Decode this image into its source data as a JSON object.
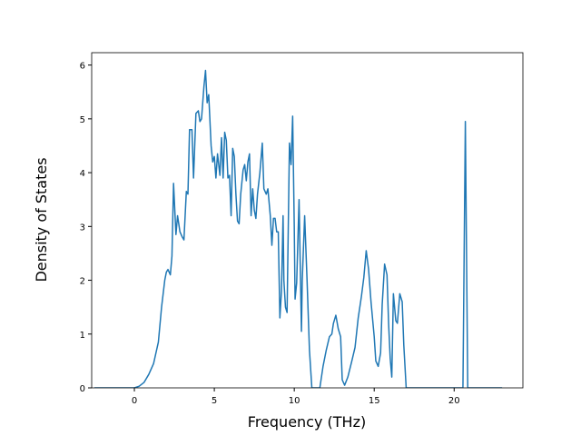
{
  "chart_data": {
    "type": "line",
    "xlabel": "Frequency (THz)",
    "ylabel": "Density of States",
    "xlim": [
      -2.67,
      24.3
    ],
    "ylim": [
      0,
      6.23
    ],
    "xticks": [
      0,
      5,
      10,
      15,
      20
    ],
    "yticks": [
      0,
      1,
      2,
      3,
      4,
      5,
      6
    ],
    "series": [
      {
        "color": "#1f77b4",
        "x": [
          -2.5,
          0,
          0.3,
          0.6,
          0.9,
          1.2,
          1.5,
          1.7,
          1.9,
          2.0,
          2.1,
          2.25,
          2.35,
          2.45,
          2.6,
          2.7,
          2.85,
          3.0,
          3.1,
          3.25,
          3.35,
          3.45,
          3.6,
          3.7,
          3.85,
          4.0,
          4.1,
          4.2,
          4.35,
          4.45,
          4.55,
          4.65,
          4.8,
          4.9,
          5.0,
          5.1,
          5.2,
          5.35,
          5.45,
          5.55,
          5.65,
          5.75,
          5.85,
          5.95,
          6.05,
          6.15,
          6.25,
          6.35,
          6.45,
          6.55,
          6.65,
          6.8,
          6.9,
          7.0,
          7.1,
          7.2,
          7.3,
          7.4,
          7.5,
          7.6,
          7.7,
          7.85,
          8.0,
          8.1,
          8.25,
          8.35,
          8.5,
          8.6,
          8.7,
          8.8,
          8.9,
          9.0,
          9.1,
          9.2,
          9.3,
          9.35,
          9.45,
          9.55,
          9.7,
          9.8,
          9.9,
          10.0,
          10.05,
          10.15,
          10.3,
          10.45,
          10.5,
          10.65,
          10.8,
          10.95,
          11.1,
          11.6,
          11.8,
          12.0,
          12.2,
          12.35,
          12.45,
          12.6,
          12.75,
          12.9,
          13.0,
          13.15,
          13.35,
          13.6,
          13.8,
          14.0,
          14.2,
          14.35,
          14.5,
          14.65,
          14.8,
          15.0,
          15.1,
          15.25,
          15.4,
          15.5,
          15.65,
          15.8,
          15.9,
          16.0,
          16.1,
          16.2,
          16.35,
          16.45,
          16.6,
          16.75,
          16.85,
          17.0,
          20.4,
          20.55,
          20.7,
          20.85,
          23.0
        ],
        "values": [
          0,
          0,
          0.03,
          0.1,
          0.25,
          0.45,
          0.85,
          1.5,
          2.0,
          2.15,
          2.2,
          2.1,
          2.45,
          3.8,
          2.85,
          3.2,
          2.9,
          2.8,
          2.75,
          3.65,
          3.6,
          4.8,
          4.8,
          3.9,
          5.1,
          5.15,
          4.95,
          5.0,
          5.6,
          5.9,
          5.3,
          5.45,
          4.5,
          4.2,
          4.3,
          3.9,
          4.35,
          3.95,
          4.65,
          3.9,
          4.75,
          4.6,
          3.9,
          3.95,
          3.2,
          4.45,
          4.3,
          3.6,
          3.1,
          3.05,
          3.6,
          4.05,
          4.15,
          3.85,
          4.2,
          4.35,
          3.2,
          3.7,
          3.3,
          3.15,
          3.6,
          4.0,
          4.55,
          3.7,
          3.6,
          3.7,
          3.2,
          2.65,
          3.15,
          3.15,
          2.9,
          2.9,
          1.3,
          1.8,
          3.2,
          2.0,
          1.5,
          1.4,
          4.55,
          4.15,
          5.05,
          3.0,
          1.65,
          1.95,
          3.5,
          1.05,
          2.0,
          3.2,
          2.0,
          0.7,
          0,
          0,
          0.4,
          0.7,
          0.95,
          1.0,
          1.2,
          1.35,
          1.1,
          0.95,
          0.15,
          0.05,
          0.2,
          0.5,
          0.75,
          1.3,
          1.7,
          2.05,
          2.55,
          2.2,
          1.6,
          0.95,
          0.5,
          0.4,
          0.65,
          1.55,
          2.3,
          2.1,
          1.2,
          0.55,
          0.2,
          1.75,
          1.25,
          1.2,
          1.75,
          1.6,
          0.8,
          0,
          0,
          0,
          4.95,
          0,
          0
        ]
      }
    ]
  }
}
